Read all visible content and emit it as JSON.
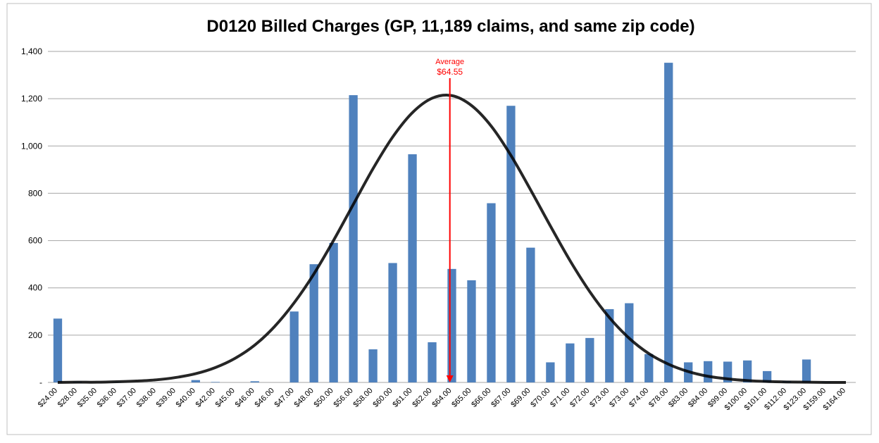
{
  "chart_data": {
    "type": "bar",
    "title": "D0120 Billed Charges (GP, 11,189 claims, and same zip code)",
    "categories": [
      "$24.00",
      "$28.00",
      "$35.00",
      "$36.00",
      "$37.00",
      "$38.00",
      "$39.00",
      "$40.00",
      "$42.00",
      "$45.00",
      "$46.00",
      "$46.00",
      "$47.00",
      "$48.00",
      "$50.00",
      "$56.00",
      "$58.00",
      "$60.00",
      "$61.00",
      "$62.00",
      "$64.00",
      "$65.00",
      "$66.00",
      "$67.00",
      "$69.00",
      "$70.00",
      "$71.00",
      "$72.00",
      "$73.00",
      "$73.00",
      "$74.00",
      "$78.00",
      "$83.00",
      "$84.00",
      "$99.00",
      "$100.00",
      "$101.00",
      "$112.00",
      "$123.00",
      "$159.00",
      "$164.00"
    ],
    "series": [
      {
        "type": "bar",
        "color": "#4f81bd",
        "values": [
          270,
          3,
          0,
          2,
          0,
          0,
          0,
          10,
          2,
          0,
          5,
          0,
          300,
          500,
          590,
          1215,
          140,
          505,
          965,
          170,
          480,
          432,
          758,
          1170,
          570,
          85,
          165,
          188,
          310,
          335,
          120,
          1352,
          85,
          90,
          88,
          93,
          48,
          5,
          97,
          2,
          0
        ]
      },
      {
        "type": "line",
        "color": "#000000",
        "values": [
          0,
          1,
          1,
          3,
          6,
          11,
          21,
          37,
          63,
          102,
          158,
          236,
          337,
          459,
          601,
          753,
          904,
          1038,
          1141,
          1202,
          1213,
          1171,
          1084,
          960,
          814,
          662,
          515,
          384,
          274,
          187,
          122,
          77,
          46,
          26,
          15,
          8,
          4,
          2,
          1,
          0,
          0
        ]
      }
    ],
    "annotations": [
      "Average",
      "$64.55"
    ],
    "annotation_color": "#ff0000",
    "ylim": [
      0,
      1400
    ],
    "yticks": [
      {
        "value": 0,
        "label": "-"
      },
      200,
      400,
      600,
      800,
      {
        "value": 1000,
        "label": "1,000"
      },
      {
        "value": 1200,
        "label": "1,200"
      },
      {
        "value": 1400,
        "label": "1,400"
      }
    ],
    "grid": true
  }
}
